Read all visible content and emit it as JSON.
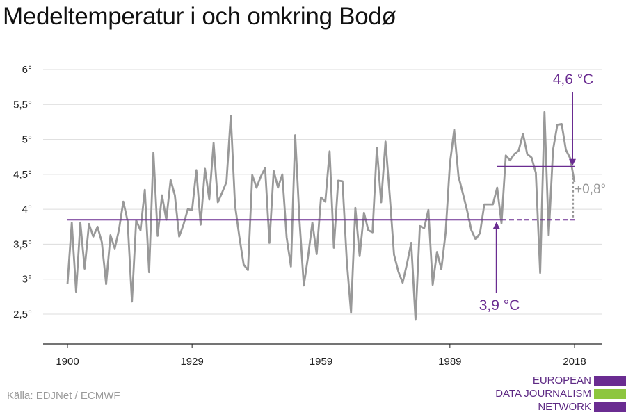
{
  "chart_data": {
    "type": "line",
    "title": "Medeltemperatur i och omkring Bodø",
    "xlabel": "",
    "ylabel": "",
    "xlim": [
      1900,
      2018
    ],
    "ylim": [
      2.1,
      6.1
    ],
    "y_ticks": [
      2.5,
      3,
      3.5,
      4,
      4.5,
      5,
      5.5,
      6
    ],
    "y_tick_labels": [
      "2,5°",
      "3°",
      "3,5°",
      "4°",
      "4,5°",
      "5°",
      "5,5°",
      "6°"
    ],
    "x_ticks": [
      1900,
      1929,
      1959,
      1989,
      2018
    ],
    "x_tick_labels": [
      "1900",
      "1929",
      "1959",
      "1989",
      "2018"
    ],
    "grid": true,
    "legend": "none",
    "series": [
      {
        "color": "#999999",
        "x": [
          1900,
          1901,
          1902,
          1903,
          1904,
          1905,
          1906,
          1907,
          1908,
          1909,
          1910,
          1911,
          1912,
          1913,
          1914,
          1915,
          1916,
          1917,
          1918,
          1919,
          1920,
          1921,
          1922,
          1923,
          1924,
          1925,
          1926,
          1927,
          1928,
          1929,
          1930,
          1931,
          1932,
          1933,
          1934,
          1935,
          1936,
          1937,
          1938,
          1939,
          1940,
          1941,
          1942,
          1943,
          1944,
          1945,
          1946,
          1947,
          1948,
          1949,
          1950,
          1951,
          1952,
          1953,
          1954,
          1955,
          1956,
          1957,
          1958,
          1959,
          1960,
          1961,
          1962,
          1963,
          1964,
          1965,
          1966,
          1967,
          1968,
          1969,
          1970,
          1971,
          1972,
          1973,
          1974,
          1975,
          1976,
          1977,
          1978,
          1979,
          1980,
          1981,
          1982,
          1983,
          1984,
          1985,
          1986,
          1987,
          1988,
          1989,
          1990,
          1991,
          1992,
          1993,
          1994,
          1995,
          1996,
          1997,
          1998,
          1999,
          2000,
          2001,
          2002,
          2003,
          2004,
          2005,
          2006,
          2007,
          2008,
          2009,
          2010,
          2011,
          2012,
          2013,
          2014,
          2015,
          2016,
          2017,
          2018
        ],
        "values": [
          2.93,
          3.81,
          2.82,
          3.81,
          3.15,
          3.79,
          3.61,
          3.75,
          3.53,
          2.93,
          3.63,
          3.44,
          3.71,
          4.11,
          3.83,
          2.68,
          3.84,
          3.7,
          4.28,
          3.1,
          4.81,
          3.62,
          4.2,
          3.85,
          4.42,
          4.2,
          3.61,
          3.78,
          4.0,
          3.99,
          4.56,
          3.78,
          4.58,
          4.14,
          4.95,
          4.1,
          4.24,
          4.39,
          5.34,
          4.06,
          3.61,
          3.21,
          3.13,
          4.49,
          4.31,
          4.47,
          4.59,
          3.52,
          4.55,
          4.31,
          4.5,
          3.6,
          3.18,
          5.06,
          3.84,
          2.91,
          3.33,
          3.81,
          3.36,
          4.17,
          4.11,
          4.83,
          3.45,
          4.41,
          4.4,
          3.26,
          2.52,
          4.02,
          3.33,
          3.95,
          3.7,
          3.67,
          4.88,
          4.1,
          4.97,
          4.2,
          3.35,
          3.11,
          2.95,
          3.22,
          3.52,
          2.42,
          3.76,
          3.73,
          3.99,
          2.92,
          3.39,
          3.14,
          3.67,
          4.65,
          5.14,
          4.47,
          4.23,
          3.98,
          3.7,
          3.57,
          3.66,
          4.07,
          4.07,
          4.07,
          4.31,
          3.8,
          4.77,
          4.7,
          4.79,
          4.84,
          5.08,
          4.79,
          4.74,
          4.52,
          3.09,
          5.39,
          3.63,
          4.85,
          5.21,
          5.22,
          4.85,
          4.73,
          4.39
        ]
      }
    ],
    "annotations": {
      "baseline": {
        "value": 3.85,
        "x_start": 1900,
        "x_end": 2018,
        "dashed_from": 2001,
        "color": "#6a2c91"
      },
      "recent": {
        "value": 4.61,
        "x_start": 2000,
        "x_end": 2018,
        "color": "#6a2c91"
      },
      "label_high": "4,6 °C",
      "label_low": "3,9 °C",
      "label_diff": "+0,8°",
      "arrow_high_x": 2018,
      "arrow_low_x": 2000
    }
  },
  "footer": {
    "source": "Källa: EDJNet / ECMWF",
    "logo_lines": [
      "EUROPEAN",
      "DATA JOURNALISM",
      "NETWORK"
    ],
    "logo_colors": [
      "#6a2c91",
      "#8dc63f",
      "#6a2c91"
    ]
  }
}
